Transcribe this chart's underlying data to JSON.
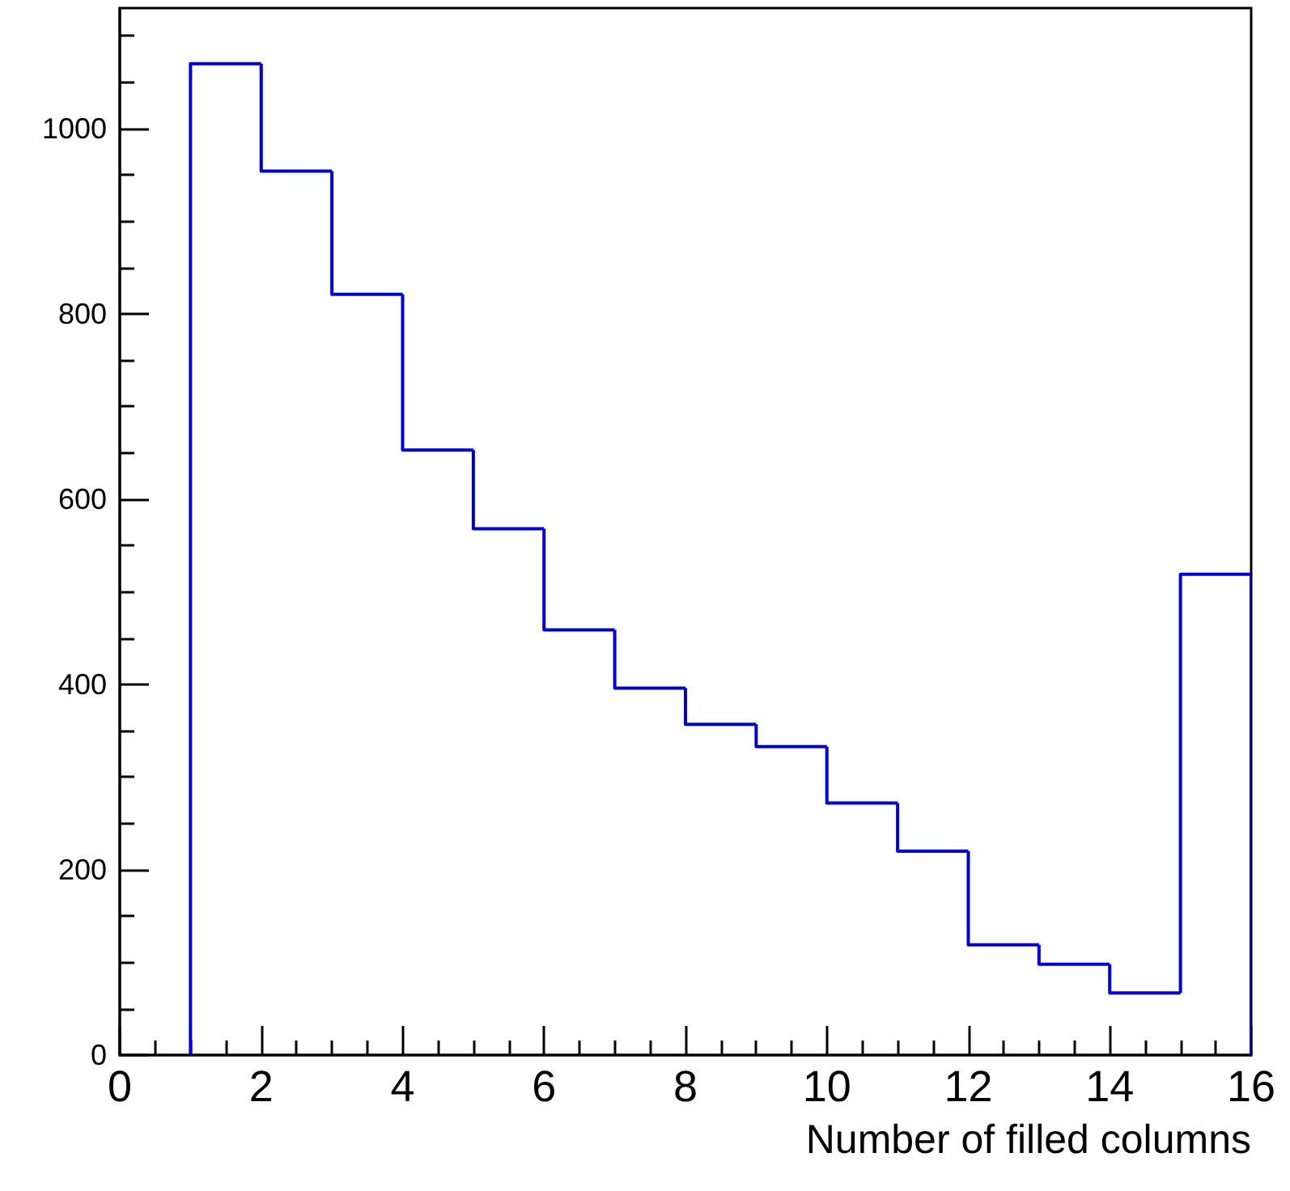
{
  "chart_data": {
    "type": "histogram",
    "xlabel": "Number of filled columns",
    "color": "#0000cc",
    "bins": [
      1,
      2,
      3,
      4,
      5,
      6,
      7,
      8,
      9,
      10,
      11,
      12,
      13,
      14,
      15,
      16
    ],
    "values": [
      1070,
      954,
      821,
      653,
      568,
      459,
      396,
      357,
      333,
      272,
      220,
      119,
      98,
      67,
      519
    ],
    "xlim": [
      0,
      16
    ],
    "xticks": [
      0,
      {
        "value": 0.5,
        "label": null
      },
      {
        "value": 1,
        "label": null
      },
      {
        "value": 1.5,
        "label": null
      },
      2,
      {
        "value": 2.5,
        "label": null
      },
      {
        "value": 3,
        "label": null
      },
      {
        "value": 3.5,
        "label": null
      },
      4,
      {
        "value": 4.5,
        "label": null
      },
      {
        "value": 5,
        "label": null
      },
      {
        "value": 5.5,
        "label": null
      },
      6,
      {
        "value": 6.5,
        "label": null
      },
      {
        "value": 7,
        "label": null
      },
      {
        "value": 7.5,
        "label": null
      },
      8,
      {
        "value": 8.5,
        "label": null
      },
      {
        "value": 9,
        "label": null
      },
      {
        "value": 9.5,
        "label": null
      },
      10,
      {
        "value": 10.5,
        "label": null
      },
      {
        "value": 11,
        "label": null
      },
      {
        "value": 11.5,
        "label": null
      },
      12,
      {
        "value": 12.5,
        "label": null
      },
      {
        "value": 13,
        "label": null
      },
      {
        "value": 13.5,
        "label": null
      },
      14,
      {
        "value": 14.5,
        "label": null
      },
      {
        "value": 15,
        "label": null
      },
      {
        "value": 15.5,
        "label": null
      },
      16
    ],
    "ylim": [
      0,
      1130
    ],
    "yticks": [
      0,
      {
        "value": 50,
        "label": null
      },
      {
        "value": 100,
        "label": null
      },
      {
        "value": 150,
        "label": null
      },
      200,
      {
        "value": 250,
        "label": null
      },
      {
        "value": 300,
        "label": null
      },
      {
        "value": 350,
        "label": null
      },
      400,
      {
        "value": 450,
        "label": null
      },
      {
        "value": 500,
        "label": null
      },
      {
        "value": 550,
        "label": null
      },
      600,
      {
        "value": 650,
        "label": null
      },
      {
        "value": 700,
        "label": null
      },
      {
        "value": 750,
        "label": null
      },
      800,
      {
        "value": 850,
        "label": null
      },
      {
        "value": 900,
        "label": null
      },
      {
        "value": 950,
        "label": null
      },
      1000,
      {
        "value": 1050,
        "label": null
      },
      {
        "value": 1100,
        "label": null
      }
    ],
    "grid": false
  }
}
